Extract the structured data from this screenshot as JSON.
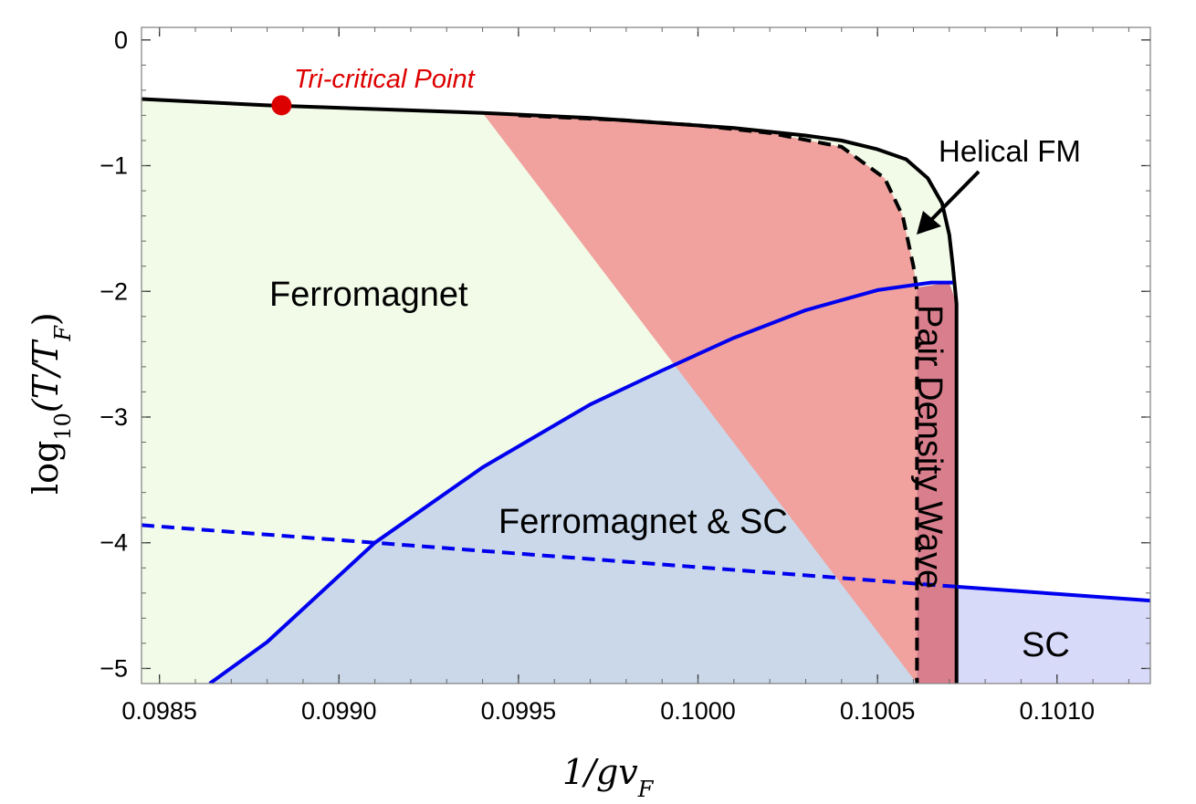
{
  "chart_data": {
    "type": "phase-diagram",
    "xlabel_parts": {
      "main": "1/gv",
      "sub": "F"
    },
    "ylabel_parts": {
      "pre": "log",
      "pre_sub": "10",
      "main": "(T/T",
      "main_sub": "F",
      "close": ")"
    },
    "xlim": [
      0.09845,
      0.10126
    ],
    "ylim": [
      -5.12,
      0.1
    ],
    "xticks": [
      0.0985,
      0.099,
      0.0995,
      0.1,
      0.1005,
      0.101
    ],
    "xtick_labels": [
      "0.0985",
      "0.0990",
      "0.0995",
      "0.1000",
      "0.1005",
      "0.1010"
    ],
    "yticks": [
      0,
      -1,
      -2,
      -3,
      -4,
      -5
    ],
    "ytick_labels": [
      "0",
      "−1",
      "−2",
      "−3",
      "−4",
      "−5"
    ],
    "series": [
      {
        "name": "FM transition (solid black)",
        "style": "solid",
        "color": "#000000",
        "x": [
          0.09845,
          0.0988,
          0.0991,
          0.0994,
          0.0997,
          0.0999,
          0.1001,
          0.1003,
          0.1004,
          0.1005,
          0.10058,
          0.10064,
          0.10068,
          0.1007,
          0.10071,
          0.10072,
          0.10072
        ],
        "y": [
          -0.47,
          -0.52,
          -0.55,
          -0.58,
          -0.62,
          -0.66,
          -0.7,
          -0.76,
          -0.8,
          -0.87,
          -0.95,
          -1.1,
          -1.3,
          -1.55,
          -1.8,
          -2.1,
          -5.12
        ]
      },
      {
        "name": "Dashed black boundary",
        "style": "dashed",
        "color": "#000000",
        "x": [
          0.0995,
          0.0998,
          0.1,
          0.1002,
          0.1004,
          0.10052,
          0.10057,
          0.1006,
          0.10061,
          0.10061
        ],
        "y": [
          -0.6,
          -0.64,
          -0.68,
          -0.74,
          -0.85,
          -1.1,
          -1.4,
          -1.8,
          -2.0,
          -5.12
        ]
      },
      {
        "name": "SC transition (solid blue)",
        "style": "solid",
        "color": "#0000ee",
        "x": [
          0.09864,
          0.0988,
          0.0991,
          0.0994,
          0.0997,
          0.0999,
          0.1001,
          0.1003,
          0.1005,
          0.10065,
          0.10071
        ],
        "y": [
          -5.12,
          -4.79,
          -4.0,
          -3.4,
          -2.9,
          -2.63,
          -2.37,
          -2.15,
          -1.99,
          -1.93,
          -1.93
        ]
      },
      {
        "name": "Dashed blue line",
        "style": "dashed",
        "color": "#0000ee",
        "x": [
          0.09845,
          0.10072
        ],
        "y": [
          -3.86,
          -4.35
        ]
      },
      {
        "name": "SC boundary (solid blue)",
        "style": "solid",
        "color": "#0000ee",
        "x": [
          0.10072,
          0.10126
        ],
        "y": [
          -4.35,
          -4.46
        ]
      }
    ],
    "region_labels": [
      "Ferromagnet",
      "Ferromagnet & SC",
      "SC",
      "Pair Density Wave"
    ],
    "annotation": "Helical FM",
    "tricritical_label": "Tri-critical Point",
    "tricritical_point": {
      "x": 0.09884,
      "y": -0.52
    },
    "colors": {
      "ferromagnet": "#f1fbe8",
      "fm_sc": "#cad8ea",
      "sc": "#d8daf9",
      "pdw": "#d97e8c",
      "helical": "#f1a29e",
      "black_line": "#000000",
      "blue_line": "#0000ee",
      "tricritical": "#dd0000"
    }
  }
}
